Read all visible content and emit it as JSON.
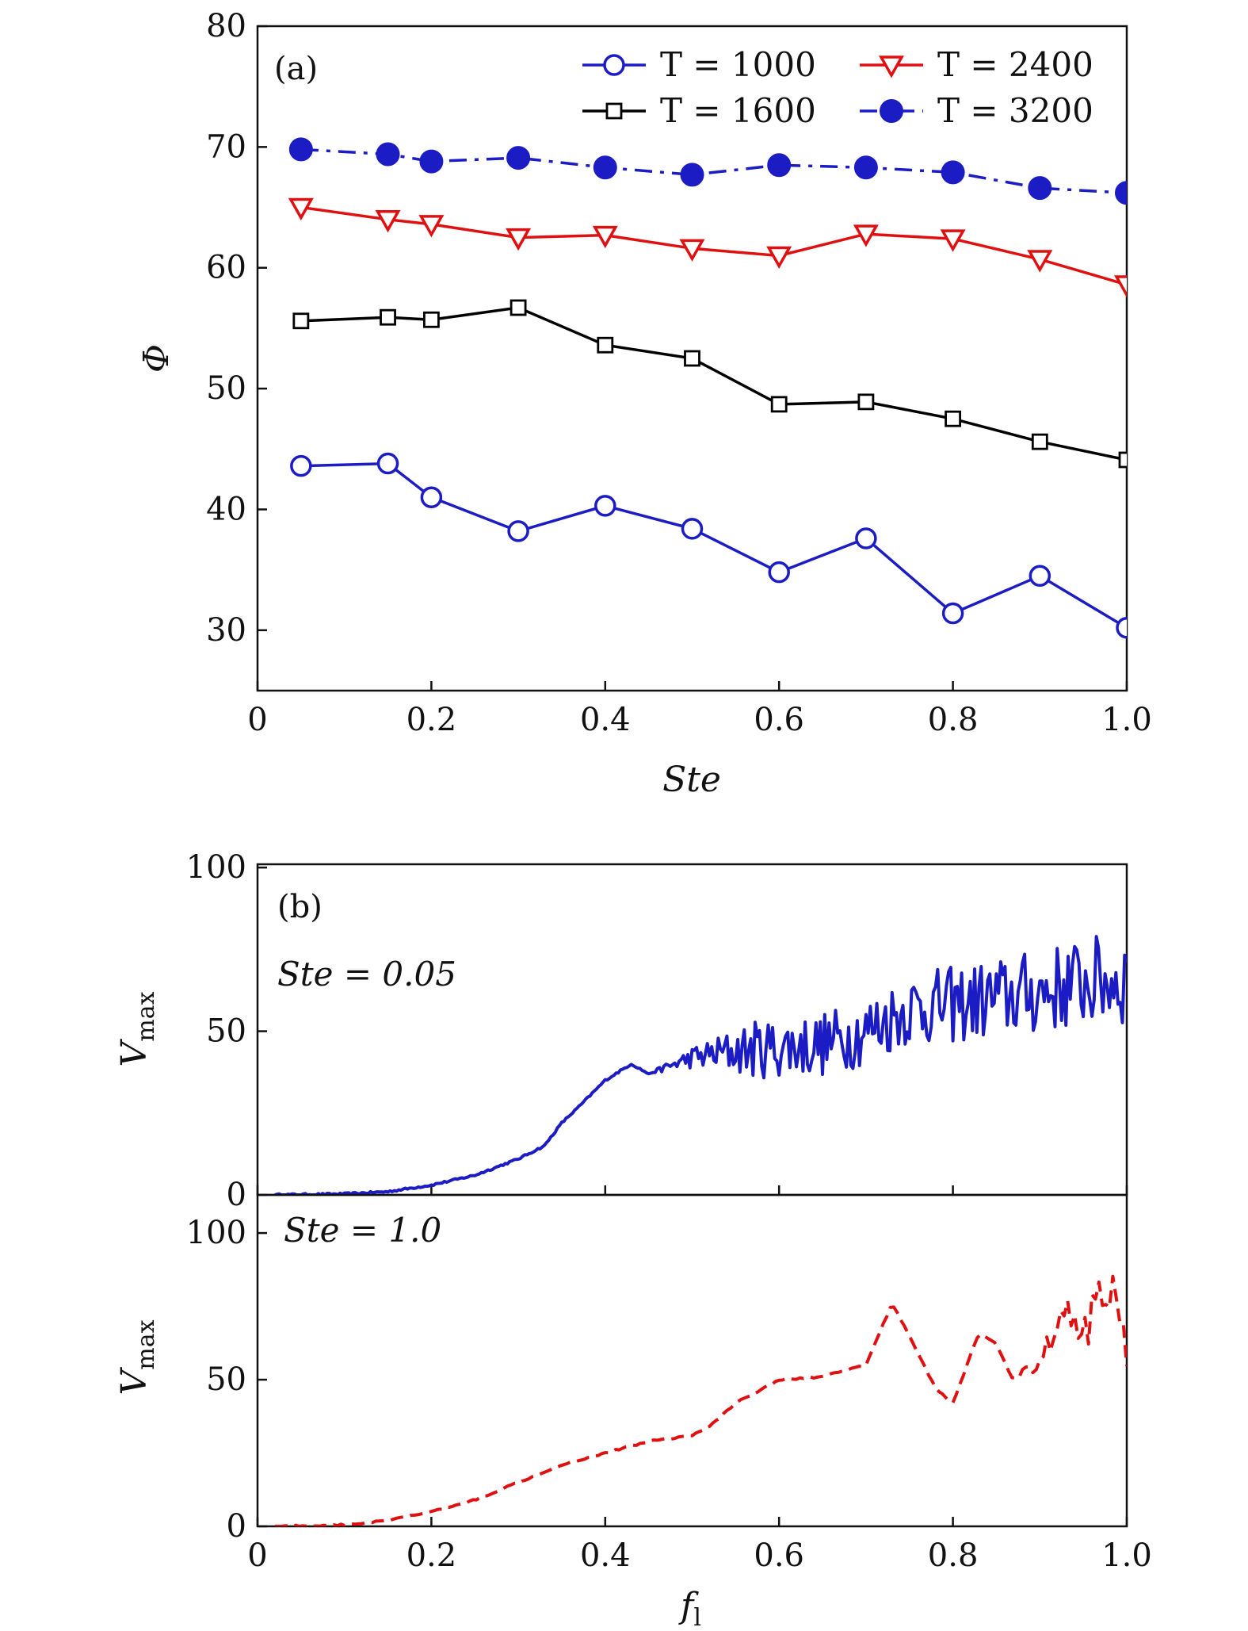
{
  "chart_data": [
    {
      "type": "line",
      "panel_label": "(a)",
      "xlabel": "Ste",
      "ylabel": "Φ",
      "xlim": [
        0,
        1.0
      ],
      "ylim": [
        25,
        80
      ],
      "x_ticks": [
        0,
        0.2,
        0.4,
        0.6,
        0.8,
        1.0
      ],
      "x_tick_labels": [
        "0",
        "0.2",
        "0.4",
        "0.6",
        "0.8",
        "1.0"
      ],
      "y_ticks": [
        30,
        40,
        50,
        60,
        70,
        80
      ],
      "y_tick_labels": [
        "30",
        "40",
        "50",
        "60",
        "70",
        "80"
      ],
      "grid": false,
      "legend_position": "top-right",
      "x": [
        0.05,
        0.15,
        0.2,
        0.3,
        0.4,
        0.5,
        0.6,
        0.7,
        0.8,
        0.9,
        1.0
      ],
      "series": [
        {
          "name": "T = 1000",
          "color": "#1c1cc4",
          "marker": "circle-open",
          "dash": "solid",
          "values": [
            43.6,
            43.8,
            41.0,
            38.2,
            40.3,
            38.4,
            34.8,
            37.6,
            31.4,
            34.5,
            30.2
          ]
        },
        {
          "name": "T = 1600",
          "color": "#000000",
          "marker": "square-open",
          "dash": "solid",
          "values": [
            55.6,
            55.9,
            55.7,
            56.7,
            53.6,
            52.5,
            48.7,
            48.9,
            47.5,
            45.6,
            44.1
          ]
        },
        {
          "name": "T = 2400",
          "color": "#e01010",
          "marker": "triangle-down-open",
          "dash": "solid",
          "values": [
            65.0,
            64.0,
            63.6,
            62.5,
            62.7,
            61.6,
            61.0,
            62.8,
            62.4,
            60.7,
            58.6
          ]
        },
        {
          "name": "T = 3200",
          "color": "#1c1cc4",
          "marker": "circle-filled",
          "dash": "dashdot",
          "values": [
            69.8,
            69.4,
            68.8,
            69.1,
            68.3,
            67.7,
            68.5,
            68.3,
            67.9,
            66.6,
            66.2
          ]
        }
      ]
    },
    {
      "type": "line",
      "panel_label": "(b)",
      "annotation": "Ste = 0.05",
      "xlabel": "",
      "ylabel": "V",
      "ylabel_sub": "max",
      "xlim": [
        0,
        1.0
      ],
      "ylim": [
        0,
        101
      ],
      "y_ticks": [
        0,
        50,
        100
      ],
      "y_tick_labels": [
        "0",
        "50",
        "100"
      ],
      "grid": false,
      "series": [
        {
          "color": "#1c1cc4",
          "dash": "solid",
          "noise_from": 0.45,
          "x": [
            0.02,
            0.1,
            0.15,
            0.2,
            0.25,
            0.3,
            0.33,
            0.35,
            0.37,
            0.4,
            0.43,
            0.45,
            0.5,
            0.55,
            0.6,
            0.65,
            0.7,
            0.75,
            0.8,
            0.85,
            0.9,
            0.95,
            1.0
          ],
          "values": [
            0,
            0.3,
            1,
            3,
            6,
            11,
            15,
            22,
            27,
            35,
            40,
            37,
            42,
            44,
            45,
            46,
            50,
            57,
            58,
            60,
            62,
            65,
            66
          ]
        }
      ]
    },
    {
      "type": "line",
      "annotation": "Ste = 1.0",
      "xlabel": "f",
      "xlabel_sub": "l",
      "ylabel": "V",
      "ylabel_sub": "max",
      "xlim": [
        0,
        1.0
      ],
      "ylim": [
        0,
        113
      ],
      "x_ticks": [
        0,
        0.2,
        0.4,
        0.6,
        0.8,
        1.0
      ],
      "x_tick_labels": [
        "0",
        "0.2",
        "0.4",
        "0.6",
        "0.8",
        "1.0"
      ],
      "y_ticks": [
        0,
        50,
        100
      ],
      "y_tick_labels": [
        "0",
        "50",
        "100"
      ],
      "grid": false,
      "series": [
        {
          "color": "#e01010",
          "dash": "dashed",
          "noise_from": 0.85,
          "x": [
            0.02,
            0.1,
            0.15,
            0.2,
            0.25,
            0.3,
            0.35,
            0.4,
            0.45,
            0.5,
            0.52,
            0.55,
            0.6,
            0.65,
            0.7,
            0.73,
            0.75,
            0.78,
            0.8,
            0.83,
            0.85,
            0.87,
            0.9,
            0.93,
            0.95,
            0.97,
            1.0
          ],
          "values": [
            0,
            0.5,
            2,
            5,
            9,
            15,
            21,
            25,
            29,
            31,
            34,
            42,
            50,
            51,
            55,
            76,
            65,
            47,
            42,
            66,
            62,
            50,
            56,
            75,
            62,
            85,
            65
          ]
        }
      ]
    }
  ]
}
